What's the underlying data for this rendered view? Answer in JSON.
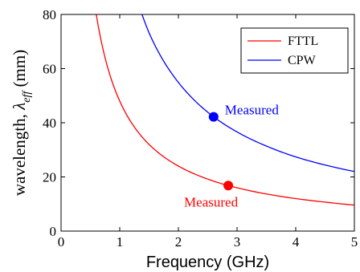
{
  "chart_data": {
    "type": "line",
    "xlabel": "Frequency (GHz)",
    "ylabel": {
      "prefix": "wavelength, ",
      "symbol": "λ",
      "subscript": "eff",
      "suffix": " (mm)"
    },
    "xlim": [
      0,
      5
    ],
    "ylim": [
      0,
      80
    ],
    "xticks": [
      0,
      1,
      2,
      3,
      4,
      5
    ],
    "yticks": [
      0,
      20,
      40,
      60,
      80
    ],
    "grid": false,
    "legend_position": "top-right",
    "series": [
      {
        "name": "FTTL",
        "color": "#ff0000",
        "x": [
          0.6,
          0.7,
          0.8,
          1.0,
          1.25,
          1.5,
          2.0,
          2.5,
          2.85,
          3.0,
          3.5,
          4.0,
          4.5,
          5.0
        ],
        "y": [
          80.0,
          68.6,
          60.0,
          48.0,
          38.4,
          32.0,
          24.0,
          19.2,
          16.8,
          16.0,
          13.7,
          12.0,
          10.7,
          9.6
        ]
      },
      {
        "name": "CPW",
        "color": "#0000ff",
        "x": [
          1.38,
          1.5,
          1.75,
          2.0,
          2.25,
          2.6,
          3.0,
          3.5,
          4.0,
          4.5,
          5.0
        ],
        "y": [
          80.0,
          73.2,
          62.7,
          54.9,
          48.8,
          42.2,
          36.6,
          31.4,
          27.4,
          24.4,
          22.0
        ]
      }
    ],
    "markers": [
      {
        "series": "CPW",
        "x": 2.6,
        "y": 42.2,
        "color": "#0000ff",
        "label": "Measured"
      },
      {
        "series": "FTTL",
        "x": 2.85,
        "y": 16.8,
        "color": "#ff0000",
        "label": "Measured"
      }
    ]
  }
}
